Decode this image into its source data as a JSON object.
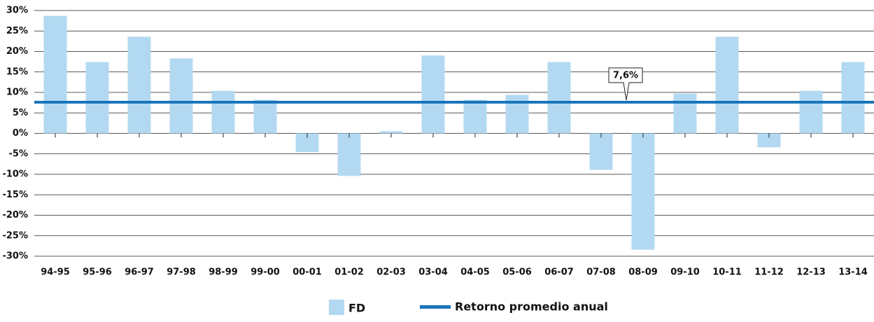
{
  "chart_data": {
    "type": "bar",
    "categories": [
      "94-95",
      "95-96",
      "96-97",
      "97-98",
      "98-99",
      "99-00",
      "00-01",
      "01-02",
      "02-03",
      "03-04",
      "04-05",
      "05-06",
      "06-07",
      "07-08",
      "08-09",
      "09-10",
      "10-11",
      "11-12",
      "12-13",
      "13-14"
    ],
    "series": [
      {
        "name": "FD",
        "color": "#b3d9f2",
        "values": [
          28.7,
          17.4,
          23.6,
          18.3,
          10.4,
          8.2,
          -4.6,
          -10.4,
          0.5,
          19.0,
          8.2,
          9.4,
          17.4,
          -8.9,
          -28.4,
          9.7,
          23.6,
          -3.4,
          10.4,
          17.4
        ]
      }
    ],
    "reference_line": {
      "name": "Retorno promedio anual",
      "value": 7.6,
      "label": "7,6%",
      "color": "#1a75bb"
    },
    "ylim": [
      -30,
      30
    ],
    "yticks": [
      {
        "value": -30,
        "label": "-30%"
      },
      {
        "value": -25,
        "label": "-25%"
      },
      {
        "value": -20,
        "label": "-20%"
      },
      {
        "value": -15,
        "label": "-15%"
      },
      {
        "value": -10,
        "label": "-10%"
      },
      {
        "value": -5,
        "label": "-5%"
      },
      {
        "value": 0,
        "label": "0%"
      },
      {
        "value": 5,
        "label": "5%"
      },
      {
        "value": 10,
        "label": "10%"
      },
      {
        "value": 15,
        "label": "15%"
      },
      {
        "value": 20,
        "label": "20%"
      },
      {
        "value": 25,
        "label": "25%"
      },
      {
        "value": 30,
        "label": "30%"
      }
    ],
    "grid": true
  }
}
